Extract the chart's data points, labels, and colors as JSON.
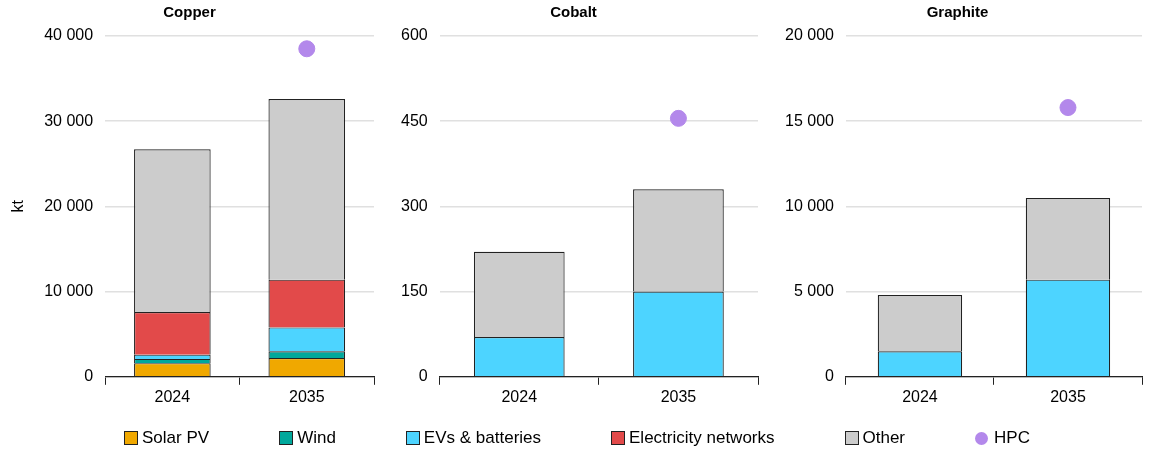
{
  "chart_data": [
    {
      "type": "bar",
      "title": "Copper",
      "ylabel": "kt",
      "categories": [
        "2024",
        "2035"
      ],
      "stacked": true,
      "ylim": [
        0,
        40000
      ],
      "yticks": [
        {
          "value": 0,
          "label": "0"
        },
        {
          "value": 10000,
          "label": "10 000"
        },
        {
          "value": 20000,
          "label": "20 000"
        },
        {
          "value": 30000,
          "label": "30 000"
        },
        {
          "value": 40000,
          "label": "40 000"
        }
      ],
      "grid": "y",
      "legend": "bottom",
      "series": [
        {
          "name": "Solar PV",
          "color": "#f0a800",
          "values": [
            1600,
            2200
          ]
        },
        {
          "name": "Wind",
          "color": "#00a89c",
          "values": [
            500,
            800
          ]
        },
        {
          "name": "EVs & batteries",
          "color": "#4dd4ff",
          "values": [
            500,
            2800
          ]
        },
        {
          "name": "Electricity networks",
          "color": "#e24a4a",
          "values": [
            5000,
            5600
          ]
        },
        {
          "name": "Other",
          "color": "#cccccc",
          "values": [
            19100,
            21200
          ]
        },
        {
          "name": "HPC",
          "type": "scatter",
          "color": "#b388eb",
          "values": [
            null,
            38500
          ]
        }
      ]
    },
    {
      "type": "bar",
      "title": "Cobalt",
      "categories": [
        "2024",
        "2035"
      ],
      "stacked": true,
      "ylim": [
        0,
        600
      ],
      "yticks": [
        0,
        150,
        300,
        450,
        600
      ],
      "grid": "y",
      "legend": "bottom",
      "series": [
        {
          "name": "EVs & batteries",
          "color": "#4dd4ff",
          "values": [
            70,
            150
          ]
        },
        {
          "name": "Other",
          "color": "#cccccc",
          "values": [
            150,
            180
          ]
        },
        {
          "name": "HPC",
          "type": "scatter",
          "color": "#b388eb",
          "values": [
            null,
            455
          ]
        }
      ]
    },
    {
      "type": "bar",
      "title": "Graphite",
      "categories": [
        "2024",
        "2035"
      ],
      "stacked": true,
      "ylim": [
        0,
        20000
      ],
      "yticks": [
        {
          "value": 0,
          "label": "0"
        },
        {
          "value": 5000,
          "label": "5 000"
        },
        {
          "value": 10000,
          "label": "10 000"
        },
        {
          "value": 15000,
          "label": "15 000"
        },
        {
          "value": 20000,
          "label": "20 000"
        }
      ],
      "grid": "y",
      "legend": "bottom",
      "series": [
        {
          "name": "EVs & batteries",
          "color": "#4dd4ff",
          "values": [
            1500,
            5700
          ]
        },
        {
          "name": "Other",
          "color": "#cccccc",
          "values": [
            3300,
            4800
          ]
        },
        {
          "name": "HPC",
          "type": "scatter",
          "color": "#b388eb",
          "values": [
            null,
            15800
          ]
        }
      ]
    }
  ]
}
